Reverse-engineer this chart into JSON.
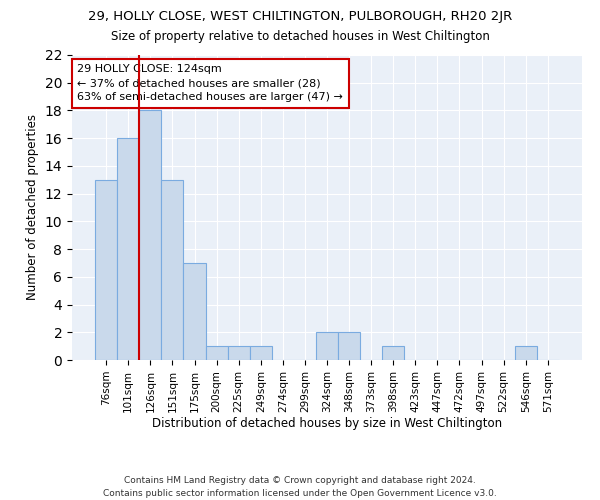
{
  "title1": "29, HOLLY CLOSE, WEST CHILTINGTON, PULBOROUGH, RH20 2JR",
  "title2": "Size of property relative to detached houses in West Chiltington",
  "xlabel": "Distribution of detached houses by size in West Chiltington",
  "ylabel": "Number of detached properties",
  "categories": [
    "76sqm",
    "101sqm",
    "126sqm",
    "151sqm",
    "175sqm",
    "200sqm",
    "225sqm",
    "249sqm",
    "274sqm",
    "299sqm",
    "324sqm",
    "348sqm",
    "373sqm",
    "398sqm",
    "423sqm",
    "447sqm",
    "472sqm",
    "497sqm",
    "522sqm",
    "546sqm",
    "571sqm"
  ],
  "values": [
    13,
    16,
    18,
    13,
    7,
    1,
    1,
    1,
    0,
    0,
    2,
    2,
    0,
    1,
    0,
    0,
    0,
    0,
    0,
    1,
    0
  ],
  "bar_color": "#c9d9eb",
  "bar_edgecolor": "#7aabe0",
  "vline_color": "#cc0000",
  "vline_x_index": 2,
  "annotation_text": "29 HOLLY CLOSE: 124sqm\n← 37% of detached houses are smaller (28)\n63% of semi-detached houses are larger (47) →",
  "annotation_box_color": "#ffffff",
  "annotation_box_edgecolor": "#cc0000",
  "ylim": [
    0,
    22
  ],
  "yticks": [
    0,
    2,
    4,
    6,
    8,
    10,
    12,
    14,
    16,
    18,
    20,
    22
  ],
  "bg_color": "#eaf0f8",
  "footer": "Contains HM Land Registry data © Crown copyright and database right 2024.\nContains public sector information licensed under the Open Government Licence v3.0.",
  "title1_fontsize": 9.5,
  "title2_fontsize": 8.5,
  "xlabel_fontsize": 8.5,
  "ylabel_fontsize": 8.5,
  "annot_fontsize": 8,
  "footer_fontsize": 6.5,
  "tick_fontsize": 7.5
}
